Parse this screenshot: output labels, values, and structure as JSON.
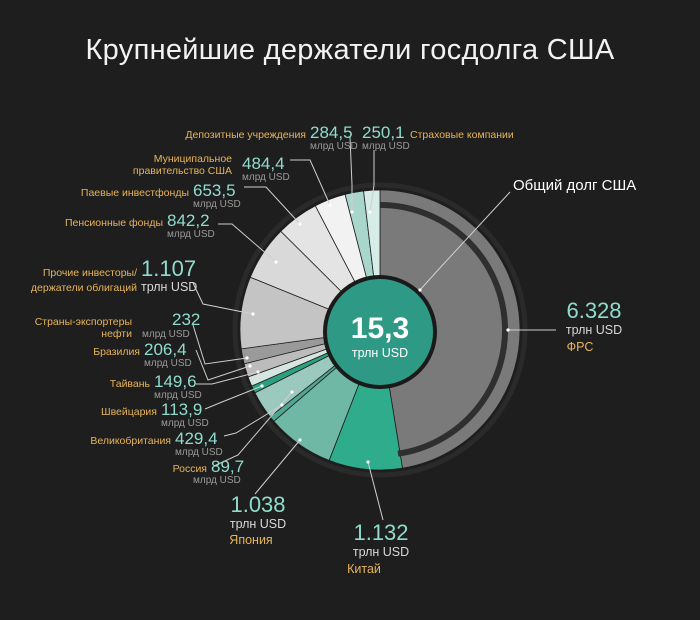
{
  "title": "Крупнейшие держатели госдолга США",
  "center": {
    "value": "15,3",
    "unit": "трлн USD"
  },
  "total_label": "Общий долг США",
  "colors": {
    "background": "#1e1e1e",
    "fed": "#7a7a7a",
    "china": "#2eac8b",
    "japan": "#6fb8a5",
    "label_name": "#e8b45a",
    "label_value": "#8fdcce",
    "center": "#2e9a86"
  },
  "chart_data": {
    "type": "pie",
    "title": "Крупнейшие держатели госдолга США",
    "total": {
      "value": 15.3,
      "unit": "трлн USD"
    },
    "slices": [
      {
        "name": "ФРС",
        "value_text": "6.328",
        "unit": "трлн USD",
        "value_bn": 6328,
        "color": "#7a7a7a"
      },
      {
        "name": "Китай",
        "value_text": "1.132",
        "unit": "трлн USD",
        "value_bn": 1132,
        "color": "#2eac8b"
      },
      {
        "name": "Япония",
        "value_text": "1.038",
        "unit": "трлн USD",
        "value_bn": 1038,
        "color": "#6fb8a5"
      },
      {
        "name": "Россия",
        "value_text": "89,7",
        "unit": "млрд USD",
        "value_bn": 89.7,
        "color": "#4fa693"
      },
      {
        "name": "Великобритания",
        "value_text": "429,4",
        "unit": "млрд USD",
        "value_bn": 429.4,
        "color": "#9cc9bd"
      },
      {
        "name": "Швейцария",
        "value_text": "113,9",
        "unit": "млрд USD",
        "value_bn": 113.9,
        "color": "#2c9f80"
      },
      {
        "name": "Тайвань",
        "value_text": "149,6",
        "unit": "млрд USD",
        "value_bn": 149.6,
        "color": "#d7e5e1"
      },
      {
        "name": "Бразилия",
        "value_text": "206,4",
        "unit": "млрд USD",
        "value_bn": 206.4,
        "color": "#bcbcbc"
      },
      {
        "name": "Страны-экспортеры нефти",
        "value_text": "232",
        "unit": "млрд USD",
        "value_bn": 232,
        "color": "#9a9a9a"
      },
      {
        "name": "Прочие инвесторы/ держатели облигаций",
        "value_text": "1.107",
        "unit": "трлн USD",
        "value_bn": 1107,
        "color": "#c4c4c4"
      },
      {
        "name": "Пенсионные фонды",
        "value_text": "842,2",
        "unit": "млрд USD",
        "value_bn": 842.2,
        "color": "#d9d9d9"
      },
      {
        "name": "Паевые инвестфонды",
        "value_text": "653,5",
        "unit": "млрд USD",
        "value_bn": 653.5,
        "color": "#e4e4e4"
      },
      {
        "name": "Муниципальное правительство США",
        "value_text": "484,4",
        "unit": "млрд USD",
        "value_bn": 484.4,
        "color": "#f2f2f2"
      },
      {
        "name": "Депозитные учреждения",
        "value_text": "284,5",
        "unit": "млрд USD",
        "value_bn": 284.5,
        "color": "#a9d6ca"
      },
      {
        "name": "Страховые компании",
        "value_text": "250,1",
        "unit": "млрд USD",
        "value_bn": 250.1,
        "color": "#d6ece6"
      }
    ]
  },
  "labels": {
    "deposit": {
      "name": "Депозитные учреждения",
      "value": "284,5",
      "unit": "млрд USD"
    },
    "insurance": {
      "name": "Страховые компании",
      "value": "250,1",
      "unit": "млрд USD"
    },
    "municipal": {
      "name1": "Муниципальное",
      "name2": "правительство США",
      "value": "484,4",
      "unit": "млрд USD"
    },
    "mutual": {
      "name": "Паевые инвестфонды",
      "value": "653,5",
      "unit": "млрд USD"
    },
    "pension": {
      "name": "Пенсионные фонды",
      "value": "842,2",
      "unit": "млрд USD"
    },
    "other": {
      "name1": "Прочие инвесторы/",
      "name2": "держатели облигаций",
      "value": "1.107",
      "unit": "трлн USD"
    },
    "oil": {
      "name1": "Страны-экспортеры",
      "name2": "нефти",
      "value": "232",
      "unit": "млрд USD"
    },
    "brazil": {
      "name": "Бразилия",
      "value": "206,4",
      "unit": "млрд USD"
    },
    "taiwan": {
      "name": "Тайвань",
      "value": "149,6",
      "unit": "млрд USD"
    },
    "swiss": {
      "name": "Швейцария",
      "value": "113,9",
      "unit": "млрд USD"
    },
    "uk": {
      "name": "Великобритания",
      "value": "429,4",
      "unit": "млрд USD"
    },
    "russia": {
      "name": "Россия",
      "value": "89,7",
      "unit": "млрд USD"
    },
    "japan": {
      "value": "1.038",
      "unit": "трлн USD",
      "name": "Япония"
    },
    "china": {
      "value": "1.132",
      "unit": "трлн USD",
      "name": "Китай"
    },
    "fed": {
      "value": "6.328",
      "unit": "трлн USD",
      "name": "ФРС"
    }
  }
}
